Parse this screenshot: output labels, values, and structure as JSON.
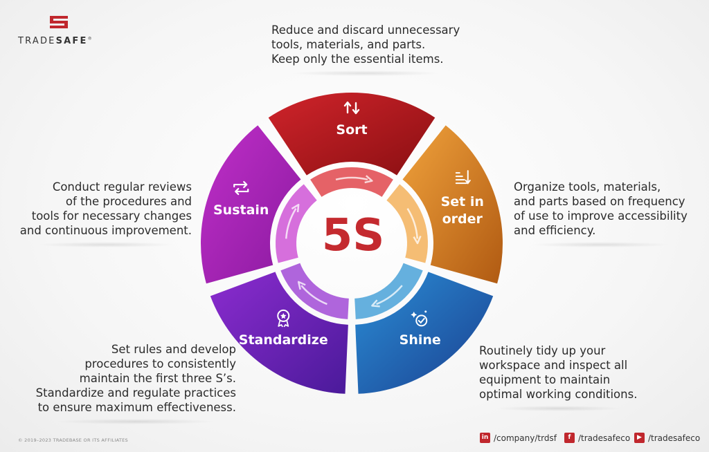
{
  "brand": {
    "name_light": "TRADE",
    "name_bold": "SAFE",
    "mark": "®"
  },
  "center_label": "5S",
  "segments": [
    {
      "id": "sort",
      "label": "Sort",
      "icon": "sort-arrows-icon",
      "color_a": "#d0242b",
      "color_b": "#8a0f12",
      "inner": "#e0464c"
    },
    {
      "id": "order",
      "label_lines": [
        "Set in",
        "order"
      ],
      "icon": "sort-descending-icon",
      "color_a": "#f0a23c",
      "color_b": "#b05a12",
      "inner": "#f3b15c"
    },
    {
      "id": "shine",
      "label": "Shine",
      "icon": "sparkle-check-icon",
      "color_a": "#2b8ed6",
      "color_b": "#1a3f8f",
      "inner": "#4aa2d8"
    },
    {
      "id": "standardize",
      "label": "Standardize",
      "icon": "award-badge-icon",
      "color_a": "#8c2ccf",
      "color_b": "#4a1a9a",
      "inner": "#a14ad6"
    },
    {
      "id": "sustain",
      "label": "Sustain",
      "icon": "cycle-arrows-icon",
      "color_a": "#c02fc8",
      "color_b": "#8a1aa0",
      "inner": "#cf56d6"
    }
  ],
  "descriptions": {
    "sort": [
      "Reduce and discard unnecessary",
      "tools, materials, and parts.",
      "Keep only the essential items."
    ],
    "order": [
      "Organize tools, materials,",
      "and parts based on frequency",
      "of use to improve accessibility",
      "and efficiency."
    ],
    "shine": [
      "Routinely tidy up your",
      "workspace and inspect all",
      "equipment to maintain",
      "optimal working conditions."
    ],
    "standardize": [
      "Set rules and develop",
      "procedures to consistently",
      "maintain the first three S’s.",
      "Standardize and regulate practices",
      "to ensure maximum effectiveness."
    ],
    "sustain": [
      "Conduct regular reviews",
      "of the procedures and",
      "tools for necessary changes",
      "and continuous improvement."
    ]
  },
  "footer": {
    "copyright": "© 2019–2023 TRADEBASE OR ITS AFFILIATES",
    "social": [
      {
        "icon": "linkedin-icon",
        "glyph": "in",
        "handle": "/company/trdsf"
      },
      {
        "icon": "facebook-icon",
        "glyph": "f",
        "handle": "/tradesafeco"
      },
      {
        "icon": "youtube-icon",
        "glyph": "▶",
        "handle": "/tradesafeco"
      }
    ]
  },
  "colors": {
    "center_text": "#c42a2f",
    "brand_red": "#c0272d"
  }
}
